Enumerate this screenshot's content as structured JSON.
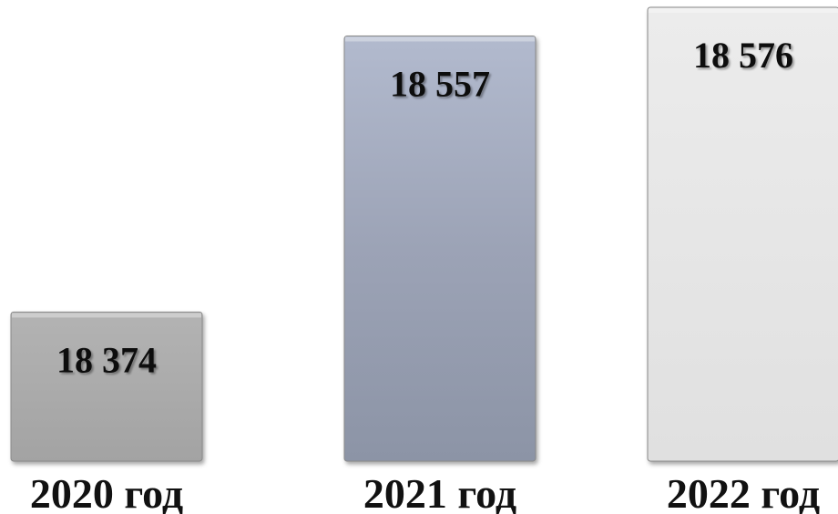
{
  "chart_data": {
    "type": "bar",
    "categories": [
      "2020 год",
      "2021 год",
      "2022 год"
    ],
    "values": [
      18374,
      18557,
      18576
    ],
    "value_labels": [
      "18 374",
      "18 557",
      "18 576"
    ],
    "colors": [
      "#a8a8a8",
      "#9aa2b8",
      "#e4e4e4"
    ],
    "grid": false,
    "legend": "none"
  }
}
